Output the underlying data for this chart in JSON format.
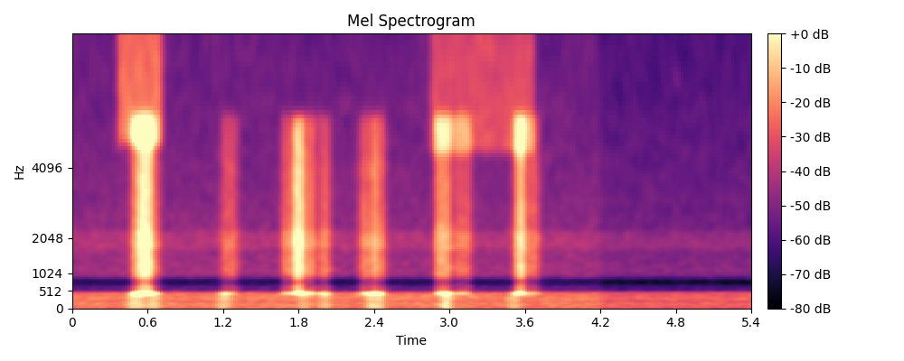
{
  "title": "Mel Spectrogram",
  "xlabel": "Time",
  "ylabel": "Hz",
  "time_min": 0,
  "time_max": 5.4,
  "freq_ticks": [
    0,
    512,
    1024,
    2048,
    4096
  ],
  "time_ticks": [
    0,
    0.6,
    1.2,
    1.8,
    2.4,
    3.0,
    3.6,
    4.2,
    4.8,
    5.4
  ],
  "cbar_ticks": [
    0,
    -10,
    -20,
    -30,
    -40,
    -50,
    -60,
    -70,
    -80
  ],
  "cbar_labels": [
    "+0 dB",
    "-10 dB",
    "-20 dB",
    "-30 dB",
    "-40 dB",
    "-50 dB",
    "-60 dB",
    "-70 dB",
    "-80 dB"
  ],
  "vmin": -80,
  "vmax": 0,
  "colormap": "magma",
  "figsize": [
    10.0,
    4.0
  ],
  "dpi": 100,
  "n_mels": 128,
  "n_frames": 270,
  "seed": 42
}
